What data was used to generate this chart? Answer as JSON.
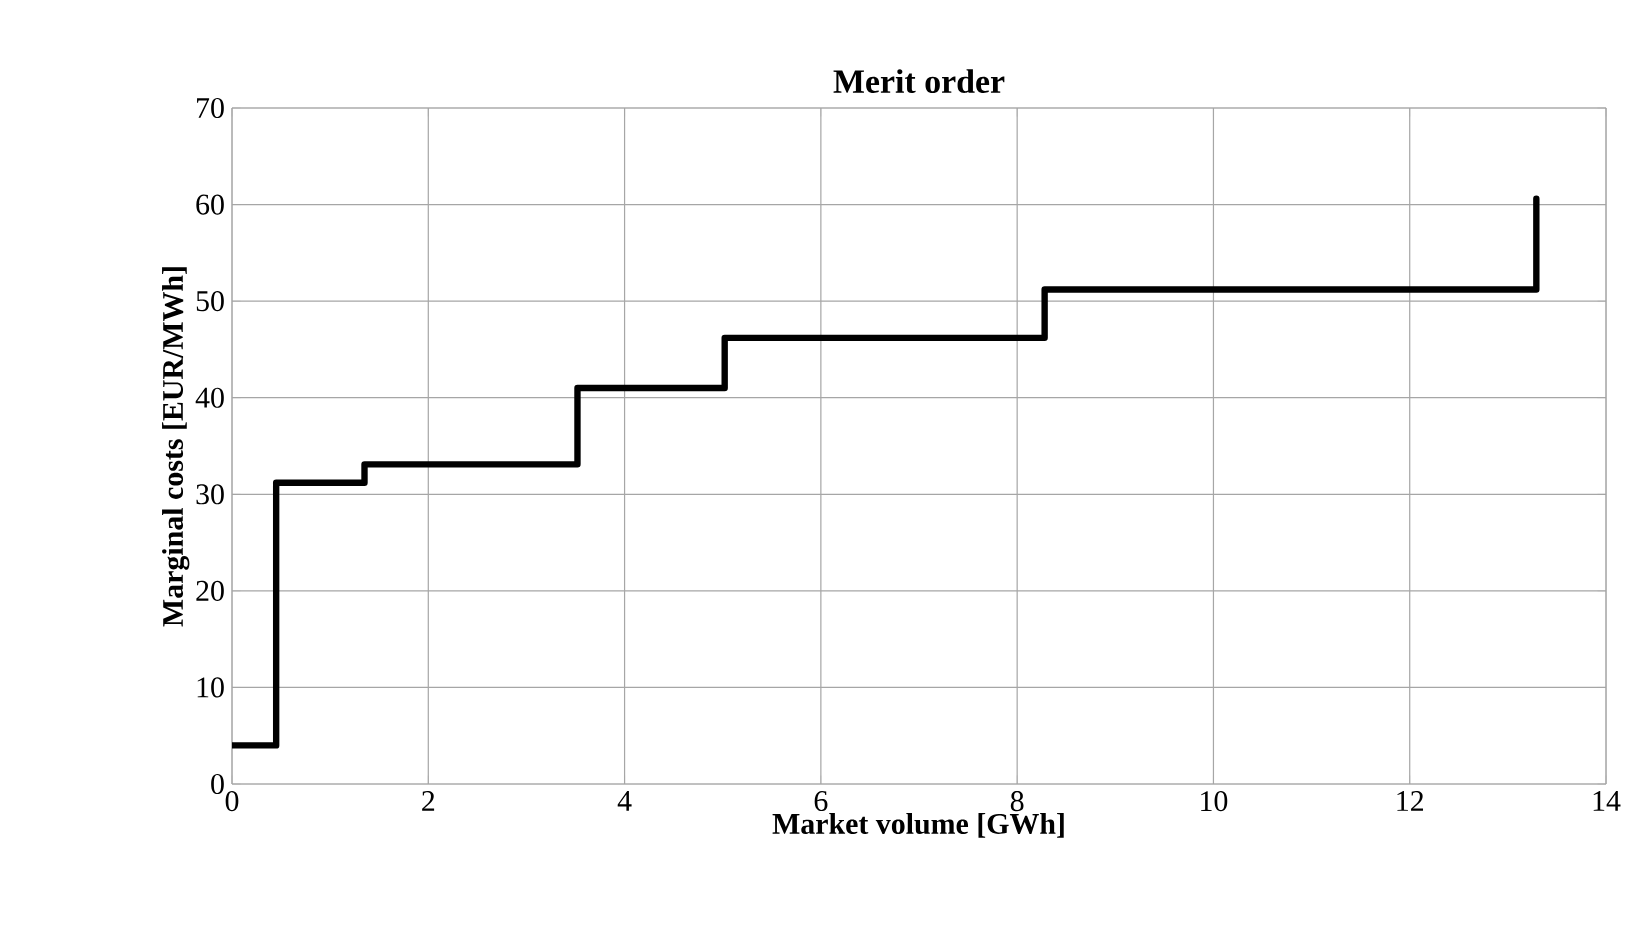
{
  "chart_data": {
    "type": "step",
    "title": "Merit order",
    "xlabel": "Market volume [GWh]",
    "ylabel": "Marginal costs [EUR/MWh]",
    "x": [
      0,
      0.45,
      1.35,
      3.52,
      5.02,
      8.28,
      13.29
    ],
    "values": [
      4,
      31.2,
      33.1,
      41,
      46.2,
      51.2,
      60.6
    ],
    "color": "#000000",
    "xlim": [
      0,
      14
    ],
    "ylim": [
      0,
      70
    ],
    "xticks": [
      0,
      2,
      4,
      6,
      8,
      10,
      12,
      14
    ],
    "yticks": [
      0,
      10,
      20,
      30,
      40,
      50,
      60,
      70
    ],
    "grid": true,
    "line_style": "solid",
    "marker": "none"
  }
}
